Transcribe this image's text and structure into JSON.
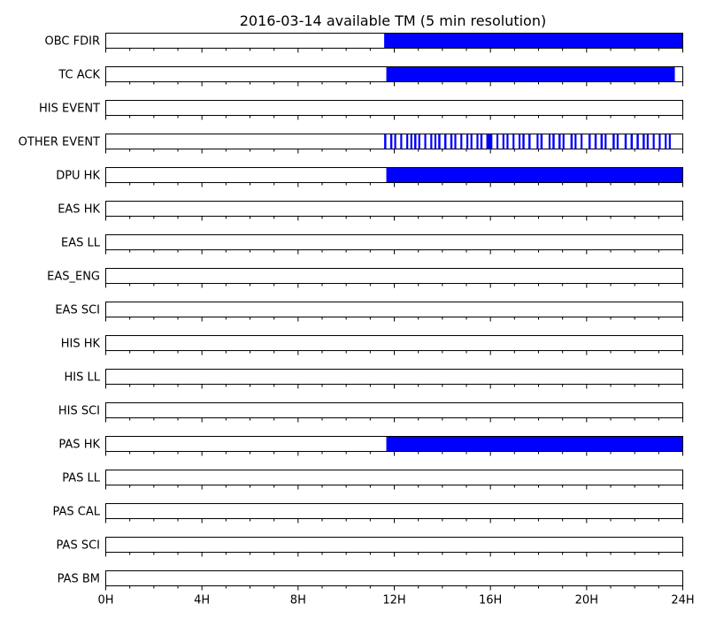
{
  "chart_data": {
    "type": "broken-bar timeline",
    "title": "2016-03-14 available TM (5 min resolution)",
    "x_unit": "hours",
    "xlim": [
      0,
      24
    ],
    "x_ticks": [
      0,
      4,
      8,
      12,
      16,
      20,
      24
    ],
    "x_tick_labels": [
      "0H",
      "4H",
      "8H",
      "12H",
      "16H",
      "20H",
      "24H"
    ],
    "x_minor_tick_step": 1,
    "bar_color": "#0000ff",
    "rows": [
      {
        "label": "OBC FDIR",
        "intervals": [
          [
            11.58,
            24.0
          ]
        ]
      },
      {
        "label": "TC ACK",
        "intervals": [
          [
            11.67,
            23.67
          ]
        ]
      },
      {
        "label": "HIS EVENT",
        "intervals": []
      },
      {
        "label": "OTHER EVENT",
        "intervals": [
          [
            11.58,
            11.67
          ],
          [
            11.83,
            11.92
          ],
          [
            12.0,
            12.08
          ],
          [
            12.25,
            12.33
          ],
          [
            12.5,
            12.58
          ],
          [
            12.67,
            12.75
          ],
          [
            12.83,
            12.92
          ],
          [
            13.0,
            13.08
          ],
          [
            13.25,
            13.33
          ],
          [
            13.5,
            13.58
          ],
          [
            13.67,
            13.75
          ],
          [
            13.83,
            13.92
          ],
          [
            14.08,
            14.17
          ],
          [
            14.33,
            14.42
          ],
          [
            14.5,
            14.58
          ],
          [
            14.75,
            14.83
          ],
          [
            15.0,
            15.08
          ],
          [
            15.17,
            15.25
          ],
          [
            15.42,
            15.5
          ],
          [
            15.58,
            15.67
          ],
          [
            15.83,
            16.08
          ],
          [
            16.25,
            16.33
          ],
          [
            16.5,
            16.58
          ],
          [
            16.67,
            16.75
          ],
          [
            16.92,
            17.0
          ],
          [
            17.17,
            17.25
          ],
          [
            17.33,
            17.42
          ],
          [
            17.58,
            17.67
          ],
          [
            17.92,
            18.0
          ],
          [
            18.08,
            18.17
          ],
          [
            18.42,
            18.5
          ],
          [
            18.58,
            18.67
          ],
          [
            18.83,
            18.92
          ],
          [
            19.0,
            19.08
          ],
          [
            19.33,
            19.42
          ],
          [
            19.5,
            19.58
          ],
          [
            19.75,
            19.83
          ],
          [
            20.08,
            20.17
          ],
          [
            20.33,
            20.42
          ],
          [
            20.58,
            20.67
          ],
          [
            20.75,
            20.83
          ],
          [
            21.08,
            21.17
          ],
          [
            21.25,
            21.33
          ],
          [
            21.58,
            21.67
          ],
          [
            21.83,
            21.92
          ],
          [
            22.08,
            22.17
          ],
          [
            22.33,
            22.42
          ],
          [
            22.5,
            22.58
          ],
          [
            22.75,
            22.83
          ],
          [
            23.0,
            23.08
          ],
          [
            23.25,
            23.33
          ],
          [
            23.42,
            23.5
          ]
        ]
      },
      {
        "label": "DPU HK",
        "intervals": [
          [
            11.67,
            24.0
          ]
        ]
      },
      {
        "label": "EAS HK",
        "intervals": []
      },
      {
        "label": "EAS LL",
        "intervals": []
      },
      {
        "label": "EAS_ENG",
        "intervals": []
      },
      {
        "label": "EAS SCI",
        "intervals": []
      },
      {
        "label": "HIS HK",
        "intervals": []
      },
      {
        "label": "HIS LL",
        "intervals": []
      },
      {
        "label": "HIS SCI",
        "intervals": []
      },
      {
        "label": "PAS HK",
        "intervals": [
          [
            11.67,
            24.0
          ]
        ]
      },
      {
        "label": "PAS LL",
        "intervals": []
      },
      {
        "label": "PAS CAL",
        "intervals": []
      },
      {
        "label": "PAS SCI",
        "intervals": []
      },
      {
        "label": "PAS BM",
        "intervals": []
      }
    ]
  }
}
